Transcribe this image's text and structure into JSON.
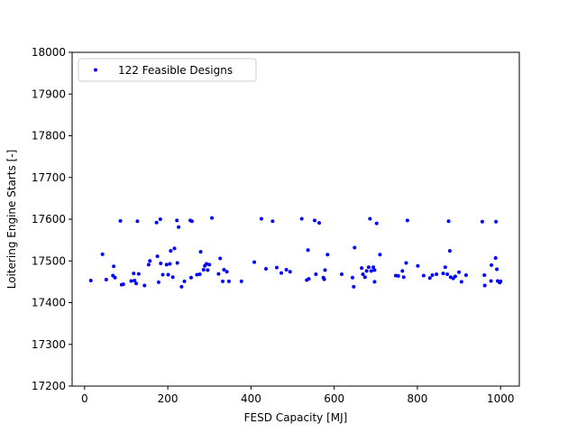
{
  "chart_data": {
    "type": "scatter",
    "xlabel": "FESD Capacity [MJ]",
    "ylabel": "Loitering Engine Starts [-]",
    "xlim": [
      -30,
      1045
    ],
    "ylim": [
      17200,
      18000
    ],
    "xticks": [
      0,
      200,
      400,
      600,
      800,
      1000
    ],
    "yticks": [
      17200,
      17300,
      17400,
      17500,
      17600,
      17700,
      17800,
      17900,
      18000
    ],
    "grid": false,
    "legend_position": "upper-left",
    "marker_color": "#0000ff",
    "series": [
      {
        "name": "122 Feasible Designs",
        "points": [
          [
            15,
            17453
          ],
          [
            43,
            17516
          ],
          [
            52,
            17455
          ],
          [
            68,
            17465
          ],
          [
            70,
            17487
          ],
          [
            73,
            17460
          ],
          [
            86,
            17596
          ],
          [
            89,
            17443
          ],
          [
            93,
            17444
          ],
          [
            112,
            17452
          ],
          [
            118,
            17470
          ],
          [
            120,
            17453
          ],
          [
            124,
            17446
          ],
          [
            127,
            17595
          ],
          [
            130,
            17469
          ],
          [
            144,
            17441
          ],
          [
            154,
            17491
          ],
          [
            157,
            17500
          ],
          [
            173,
            17592
          ],
          [
            175,
            17511
          ],
          [
            178,
            17449
          ],
          [
            182,
            17600
          ],
          [
            183,
            17494
          ],
          [
            188,
            17467
          ],
          [
            197,
            17491
          ],
          [
            201,
            17467
          ],
          [
            205,
            17493
          ],
          [
            207,
            17524
          ],
          [
            212,
            17461
          ],
          [
            216,
            17530
          ],
          [
            222,
            17597
          ],
          [
            223,
            17495
          ],
          [
            226,
            17581
          ],
          [
            233,
            17438
          ],
          [
            240,
            17451
          ],
          [
            254,
            17597
          ],
          [
            256,
            17460
          ],
          [
            258,
            17595
          ],
          [
            270,
            17467
          ],
          [
            277,
            17468
          ],
          [
            279,
            17522
          ],
          [
            286,
            17479
          ],
          [
            289,
            17488
          ],
          [
            293,
            17493
          ],
          [
            296,
            17478
          ],
          [
            300,
            17491
          ],
          [
            306,
            17603
          ],
          [
            322,
            17469
          ],
          [
            326,
            17506
          ],
          [
            332,
            17451
          ],
          [
            335,
            17479
          ],
          [
            342,
            17474
          ],
          [
            347,
            17451
          ],
          [
            377,
            17451
          ],
          [
            408,
            17497
          ],
          [
            425,
            17601
          ],
          [
            436,
            17481
          ],
          [
            452,
            17595
          ],
          [
            462,
            17484
          ],
          [
            473,
            17471
          ],
          [
            485,
            17479
          ],
          [
            494,
            17474
          ],
          [
            522,
            17601
          ],
          [
            534,
            17454
          ],
          [
            537,
            17526
          ],
          [
            539,
            17457
          ],
          [
            553,
            17597
          ],
          [
            556,
            17468
          ],
          [
            564,
            17591
          ],
          [
            574,
            17460
          ],
          [
            576,
            17456
          ],
          [
            578,
            17478
          ],
          [
            584,
            17515
          ],
          [
            618,
            17468
          ],
          [
            644,
            17460
          ],
          [
            647,
            17438
          ],
          [
            649,
            17532
          ],
          [
            666,
            17483
          ],
          [
            669,
            17468
          ],
          [
            674,
            17461
          ],
          [
            678,
            17476
          ],
          [
            683,
            17485
          ],
          [
            686,
            17601
          ],
          [
            689,
            17476
          ],
          [
            694,
            17485
          ],
          [
            697,
            17450
          ],
          [
            697,
            17478
          ],
          [
            702,
            17590
          ],
          [
            710,
            17515
          ],
          [
            748,
            17465
          ],
          [
            754,
            17464
          ],
          [
            764,
            17476
          ],
          [
            767,
            17461
          ],
          [
            773,
            17495
          ],
          [
            776,
            17597
          ],
          [
            801,
            17488
          ],
          [
            815,
            17465
          ],
          [
            830,
            17459
          ],
          [
            836,
            17466
          ],
          [
            846,
            17468
          ],
          [
            862,
            17470
          ],
          [
            867,
            17485
          ],
          [
            872,
            17468
          ],
          [
            875,
            17595
          ],
          [
            878,
            17524
          ],
          [
            880,
            17461
          ],
          [
            886,
            17458
          ],
          [
            891,
            17463
          ],
          [
            900,
            17473
          ],
          [
            906,
            17450
          ],
          [
            917,
            17466
          ],
          [
            956,
            17594
          ],
          [
            961,
            17466
          ],
          [
            962,
            17441
          ],
          [
            977,
            17452
          ],
          [
            978,
            17490
          ],
          [
            988,
            17507
          ],
          [
            989,
            17594
          ],
          [
            991,
            17480
          ],
          [
            993,
            17452
          ],
          [
            998,
            17448
          ],
          [
            1000,
            17451
          ]
        ]
      }
    ]
  }
}
